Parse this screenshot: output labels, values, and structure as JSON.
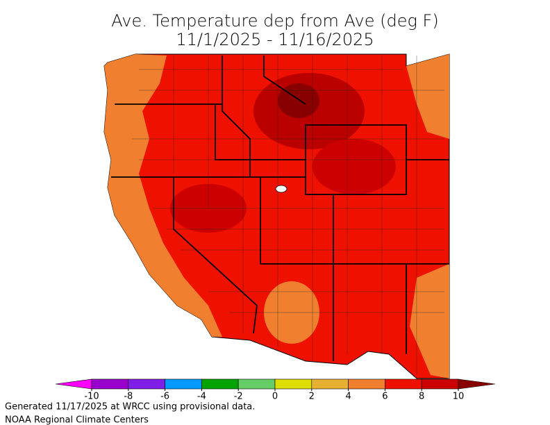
{
  "title": [
    "Ave. Temperature dep from Ave (deg F)",
    "11/1/2025 - 11/16/2025"
  ],
  "legend": {
    "ticks": [
      -10,
      -8,
      -6,
      -4,
      -2,
      0,
      2,
      4,
      6,
      8,
      10
    ],
    "colors": [
      "#ff00ff",
      "#9900cc",
      "#7f1ee6",
      "#0099ff",
      "#00a300",
      "#66cc66",
      "#dddd00",
      "#e6b030",
      "#f08030",
      "#ee1100",
      "#cc0000",
      "#880000"
    ]
  },
  "footer": [
    "Generated 11/17/2025 at WRCC using provisional data.",
    "NOAA Regional Climate Centers"
  ]
}
